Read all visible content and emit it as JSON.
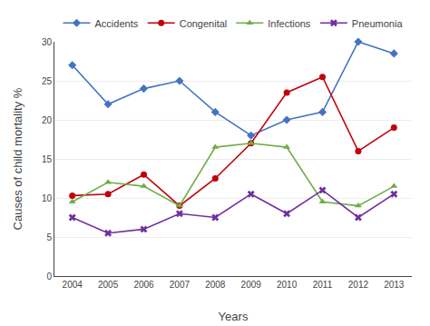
{
  "chart_data": {
    "type": "line",
    "x": [
      2004,
      2005,
      2006,
      2007,
      2008,
      2009,
      2010,
      2011,
      2012,
      2013
    ],
    "series": [
      {
        "name": "Accidents",
        "color": "#4472C4",
        "marker": "diamond",
        "values": [
          27.0,
          22.0,
          24.0,
          25.0,
          21.0,
          18.0,
          20.0,
          21.0,
          30.0,
          28.5
        ]
      },
      {
        "name": "Congenital",
        "color": "#C0000C",
        "marker": "circle",
        "values": [
          10.3,
          10.5,
          13.0,
          9.0,
          12.5,
          17.0,
          23.5,
          25.5,
          16.0,
          19.0
        ]
      },
      {
        "name": "Infections",
        "color": "#70AD47",
        "marker": "triangle-up",
        "values": [
          9.5,
          12.0,
          11.5,
          9.0,
          16.5,
          17.0,
          16.5,
          9.5,
          9.0,
          11.5
        ]
      },
      {
        "name": "Pneumonia",
        "color": "#7030A0",
        "marker": "x",
        "values": [
          7.5,
          5.5,
          6.0,
          8.0,
          7.5,
          10.5,
          8.0,
          11.0,
          7.5,
          10.5
        ]
      }
    ],
    "xlabel": "Years",
    "ylabel": "Causes of child mortality %",
    "xlim": [
      2003.5,
      2013.5
    ],
    "xticks": [
      2004,
      2005,
      2006,
      2007,
      2008,
      2009,
      2010,
      2011,
      2012,
      2013
    ],
    "ylim": [
      0,
      30
    ],
    "yticks": [
      0,
      5,
      10,
      15,
      20,
      25,
      30
    ],
    "grid": "y",
    "legend": "top"
  }
}
